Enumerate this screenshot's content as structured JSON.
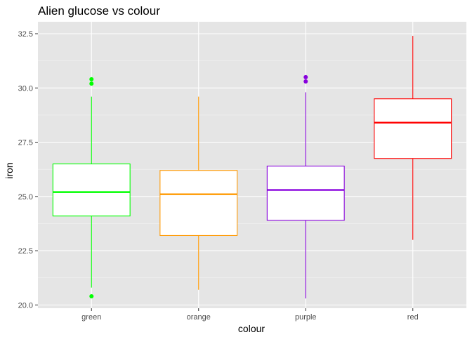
{
  "chart_data": {
    "type": "boxplot",
    "title": "Alien glucose vs colour",
    "xlabel": "colour",
    "ylabel": "iron",
    "categories": [
      "green",
      "orange",
      "purple",
      "red"
    ],
    "ylim": [
      19.85,
      33.05
    ],
    "yticks": [
      20.0,
      22.5,
      25.0,
      27.5,
      30.0,
      32.5
    ],
    "ytick_labels": [
      "20.0",
      "22.5",
      "25.0",
      "27.5",
      "30.0",
      "32.5"
    ],
    "grid": true,
    "background": "#e5e5e5",
    "boxes": [
      {
        "category": "green",
        "color": "#00ff00",
        "min": 20.8,
        "q1": 24.1,
        "median": 25.2,
        "q3": 26.5,
        "max": 29.6,
        "outliers": [
          20.4,
          30.2,
          30.4
        ]
      },
      {
        "category": "orange",
        "color": "#ff9900",
        "min": 20.7,
        "q1": 23.2,
        "median": 25.1,
        "q3": 26.2,
        "max": 29.6,
        "outliers": []
      },
      {
        "category": "purple",
        "color": "#8800dd",
        "min": 20.3,
        "q1": 23.9,
        "median": 25.3,
        "q3": 26.4,
        "max": 29.8,
        "outliers": [
          30.3,
          30.5
        ]
      },
      {
        "category": "red",
        "color": "#ff0000",
        "min": 23.0,
        "q1": 26.75,
        "median": 28.4,
        "q3": 29.5,
        "max": 32.4,
        "outliers": []
      }
    ]
  }
}
